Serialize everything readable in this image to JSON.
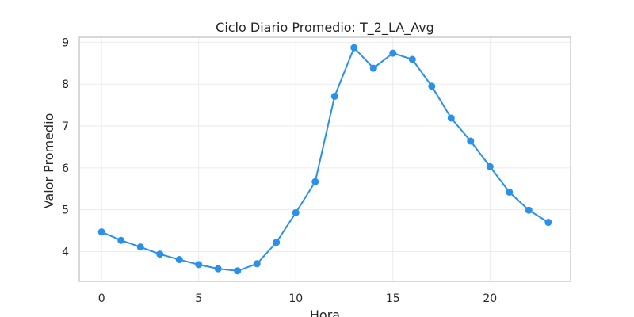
{
  "chart_data": {
    "type": "line",
    "title": "Ciclo Diario Promedio: T_2_LA_Avg",
    "xlabel": "Hora",
    "ylabel": "Valor Promedio",
    "x": [
      0,
      1,
      2,
      3,
      4,
      5,
      6,
      7,
      8,
      9,
      10,
      11,
      12,
      13,
      14,
      15,
      16,
      17,
      18,
      19,
      20,
      21,
      22,
      23
    ],
    "series": [
      {
        "color": "#2b90ea",
        "marker": "circle",
        "values": [
          4.47,
          4.27,
          4.11,
          3.94,
          3.81,
          3.69,
          3.59,
          3.54,
          3.71,
          4.22,
          4.93,
          5.67,
          7.71,
          8.87,
          8.38,
          8.74,
          8.59,
          7.95,
          7.19,
          6.64,
          6.03,
          5.42,
          4.99,
          4.7
        ]
      }
    ],
    "xlim": [
      -1.15,
      24.15
    ],
    "ylim": [
      3.29,
      9.12
    ],
    "xticks": [
      0,
      5,
      10,
      15,
      20
    ],
    "yticks": [
      4,
      5,
      6,
      7,
      8,
      9
    ],
    "grid": true,
    "legend": "none"
  }
}
